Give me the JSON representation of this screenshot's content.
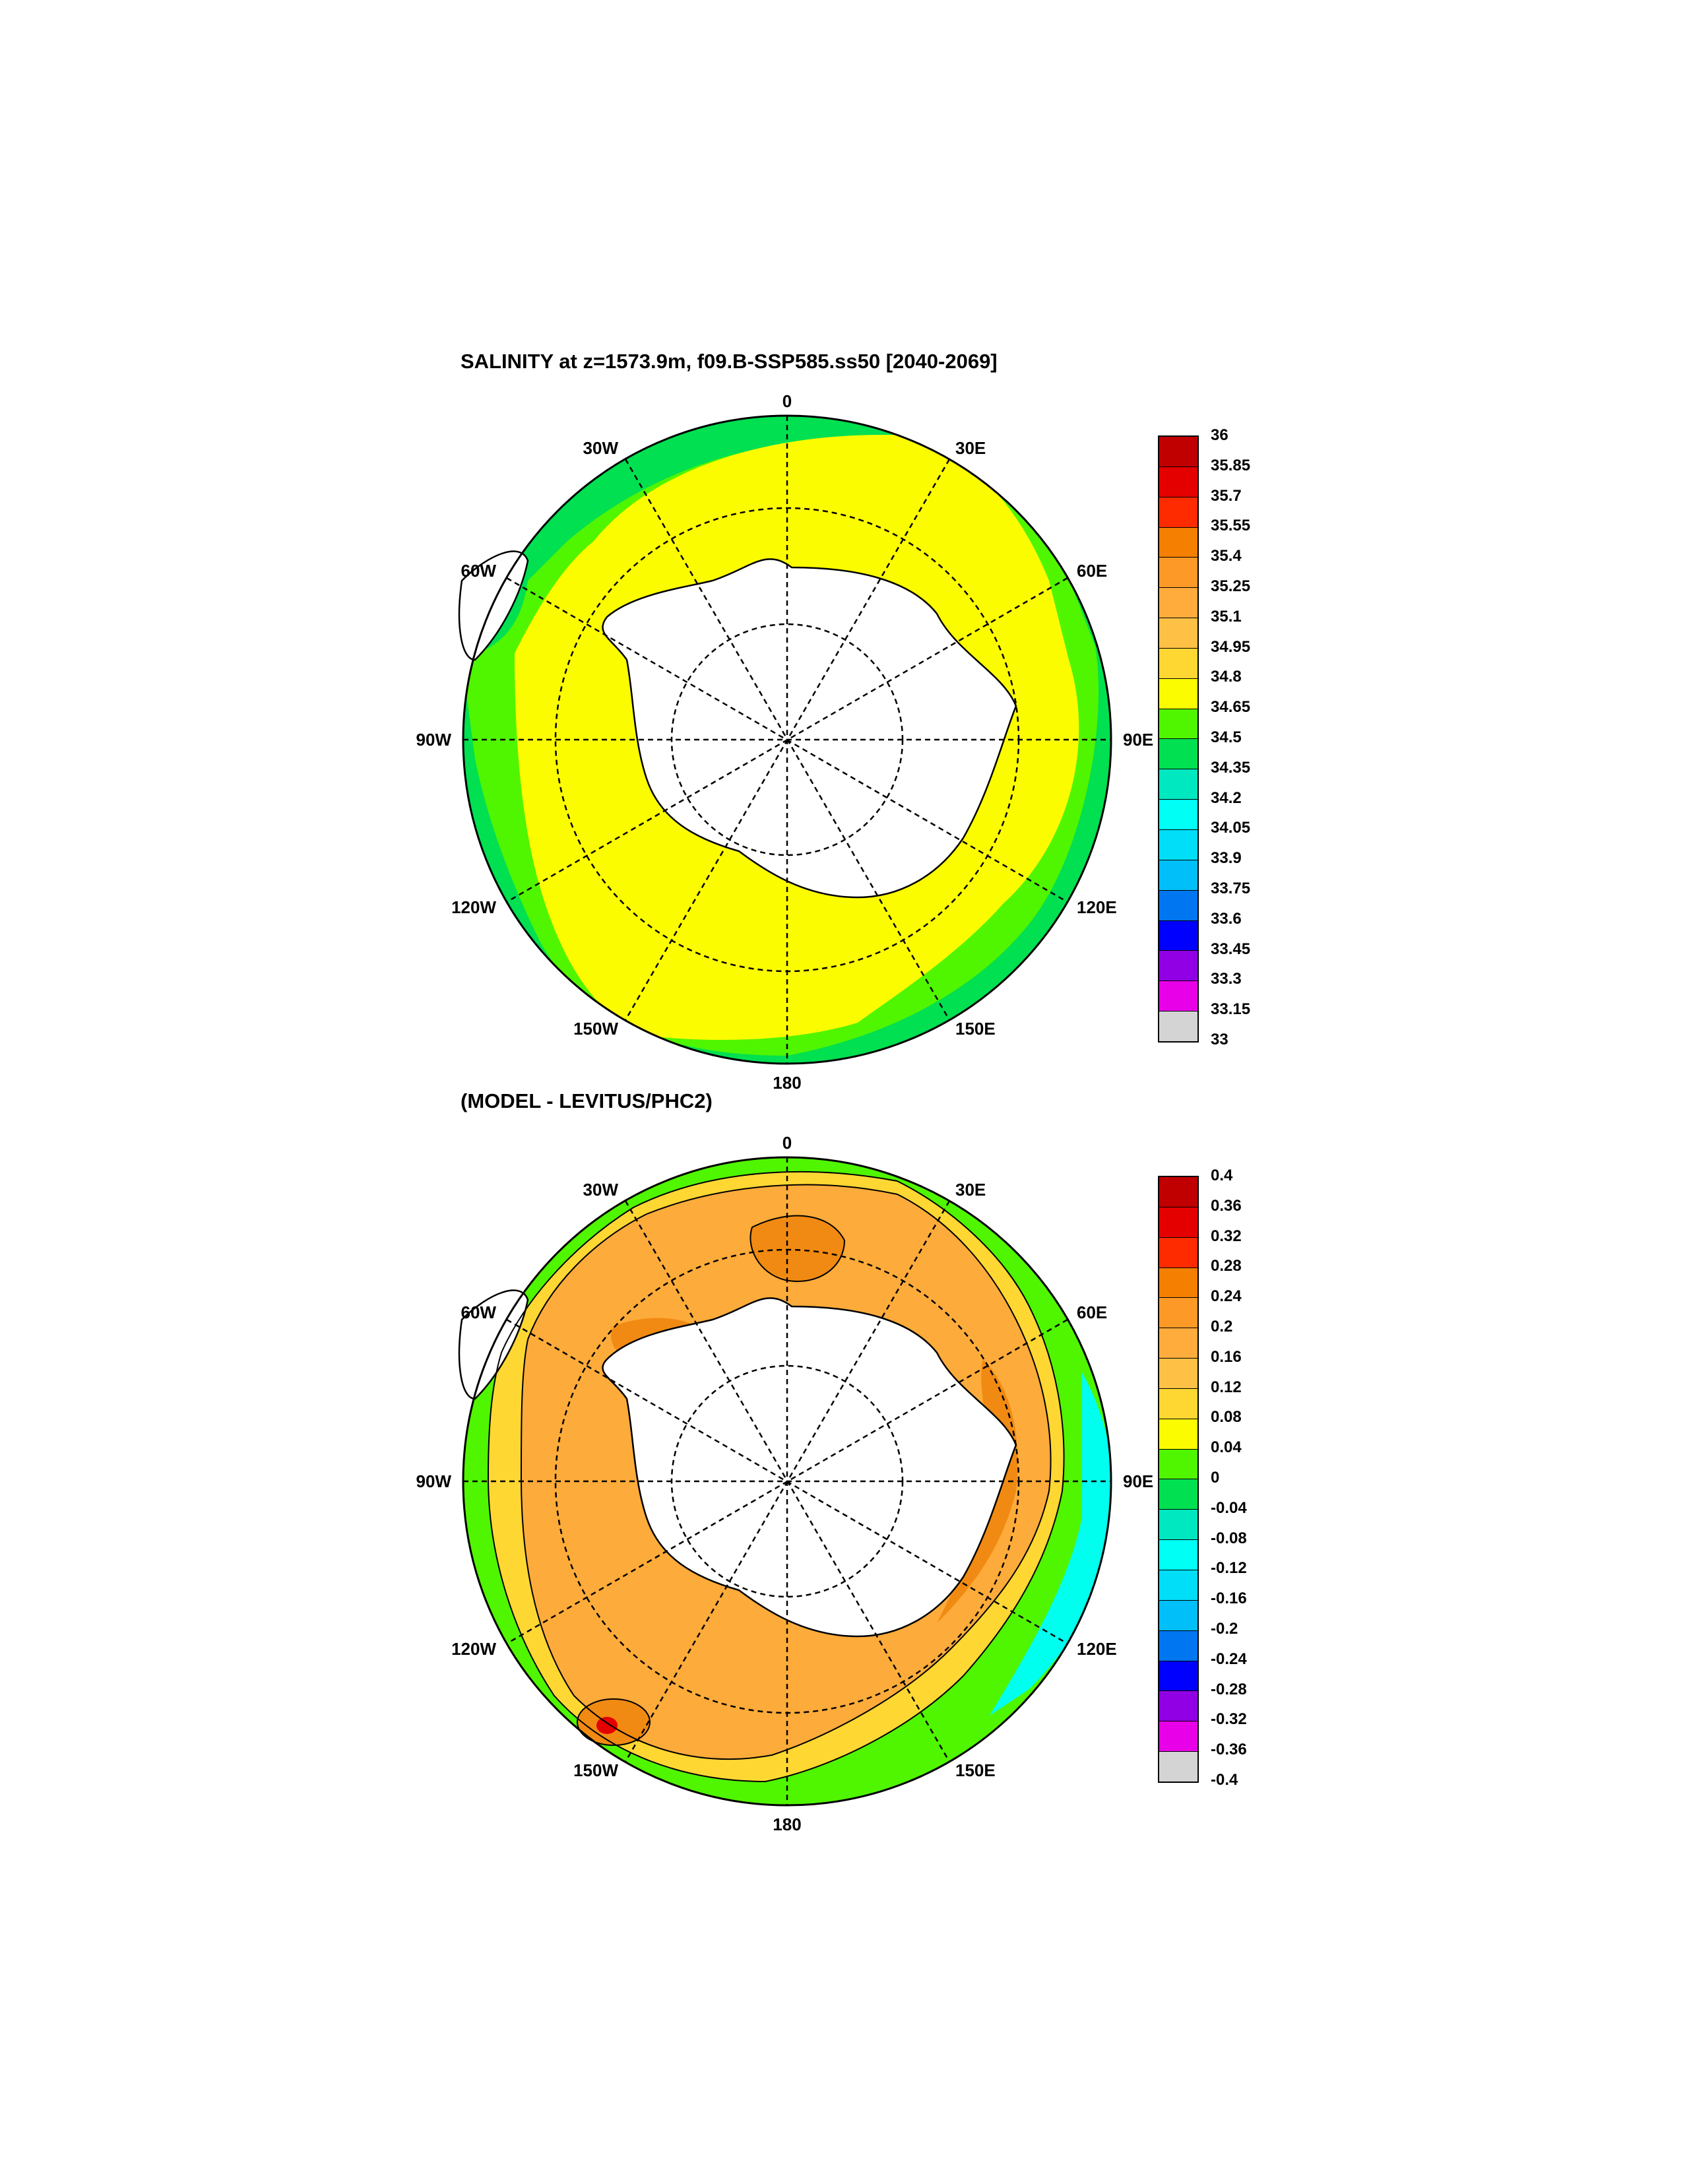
{
  "panels": [
    {
      "title": "SALINITY at z=1573.9m, f09.B-SSP585.ss50 [2040-2069]",
      "colorbar_labels": [
        "36",
        "35.85",
        "35.7",
        "35.55",
        "35.4",
        "35.25",
        "35.1",
        "34.95",
        "34.8",
        "34.65",
        "34.5",
        "34.35",
        "34.2",
        "34.05",
        "33.9",
        "33.75",
        "33.6",
        "33.45",
        "33.3",
        "33.15",
        "33"
      ]
    },
    {
      "title": "(MODEL - LEVITUS/PHC2)",
      "colorbar_labels": [
        "0.4",
        "0.36",
        "0.32",
        "0.28",
        "0.24",
        "0.2",
        "0.16",
        "0.12",
        "0.08",
        "0.04",
        "0",
        "-0.04",
        "-0.08",
        "-0.12",
        "-0.16",
        "-0.2",
        "-0.24",
        "-0.28",
        "-0.32",
        "-0.36",
        "-0.4"
      ]
    }
  ],
  "longitude_labels": {
    "top": "0",
    "bottom": "180",
    "left": "90W",
    "right": "90E",
    "30W": "30W",
    "30E": "30E",
    "60W": "60W",
    "60E": "60E",
    "120W": "120W",
    "120E": "120E",
    "150W": "150W",
    "150E": "150E"
  },
  "colormap": [
    "#c00000",
    "#e50000",
    "#ff2b00",
    "#f47f00",
    "#fd9926",
    "#ffac3c",
    "#ffc145",
    "#ffd733",
    "#fcfc00",
    "#50f500",
    "#00e050",
    "#00e8c0",
    "#00fff4",
    "#00def8",
    "#00bff9",
    "#0076f0",
    "#0000ff",
    "#9100e5",
    "#e800e8",
    "#d4d4d4",
    "#707070"
  ],
  "map_colors": {
    "land": "#ffffff",
    "top_main": "#fcfc00",
    "top_outer": "#50f500",
    "top_edge": "#00e050",
    "bottom_main": "#fdab3a",
    "bottom_core": "#f18a12",
    "bottom_yellow": "#ffd733",
    "bottom_green": "#50f500",
    "bottom_cyan": "#00ffef",
    "bottom_red": "#e50000"
  }
}
